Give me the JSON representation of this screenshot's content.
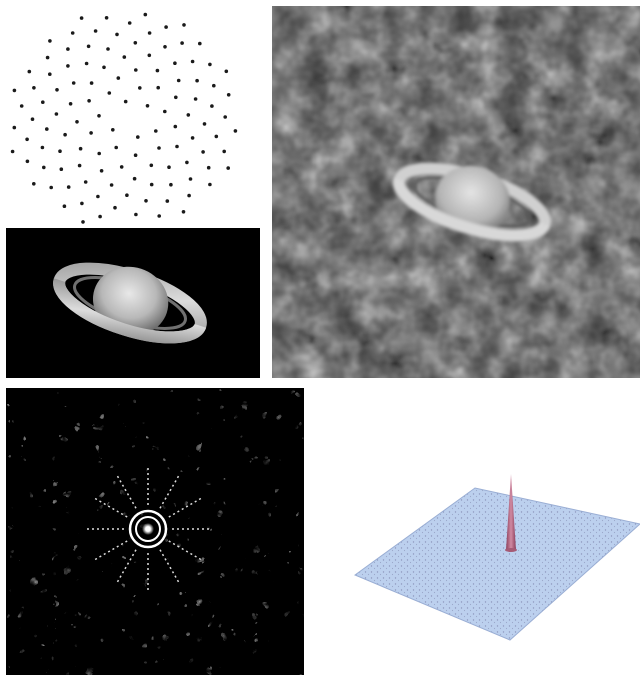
{
  "figure": {
    "panels": [
      {
        "id": "spiral",
        "content": "spiral-point-pattern"
      },
      {
        "id": "saturn",
        "content": "saturn-image"
      },
      {
        "id": "noisy",
        "content": "noisy-saturn-image"
      },
      {
        "id": "psf",
        "content": "speckle-image"
      },
      {
        "id": "surface",
        "content": "3d-surface-peak"
      }
    ],
    "colors": {
      "background": "#ffffff",
      "dot": "#1a1a1a",
      "speckle_fg": "#e8e8e8",
      "surface_fill": "#bcd0ee",
      "surface_noise": "#7a7fa8",
      "peak": "#b0607a"
    },
    "spiral": {
      "dot_count": 120,
      "arms": 2
    }
  }
}
